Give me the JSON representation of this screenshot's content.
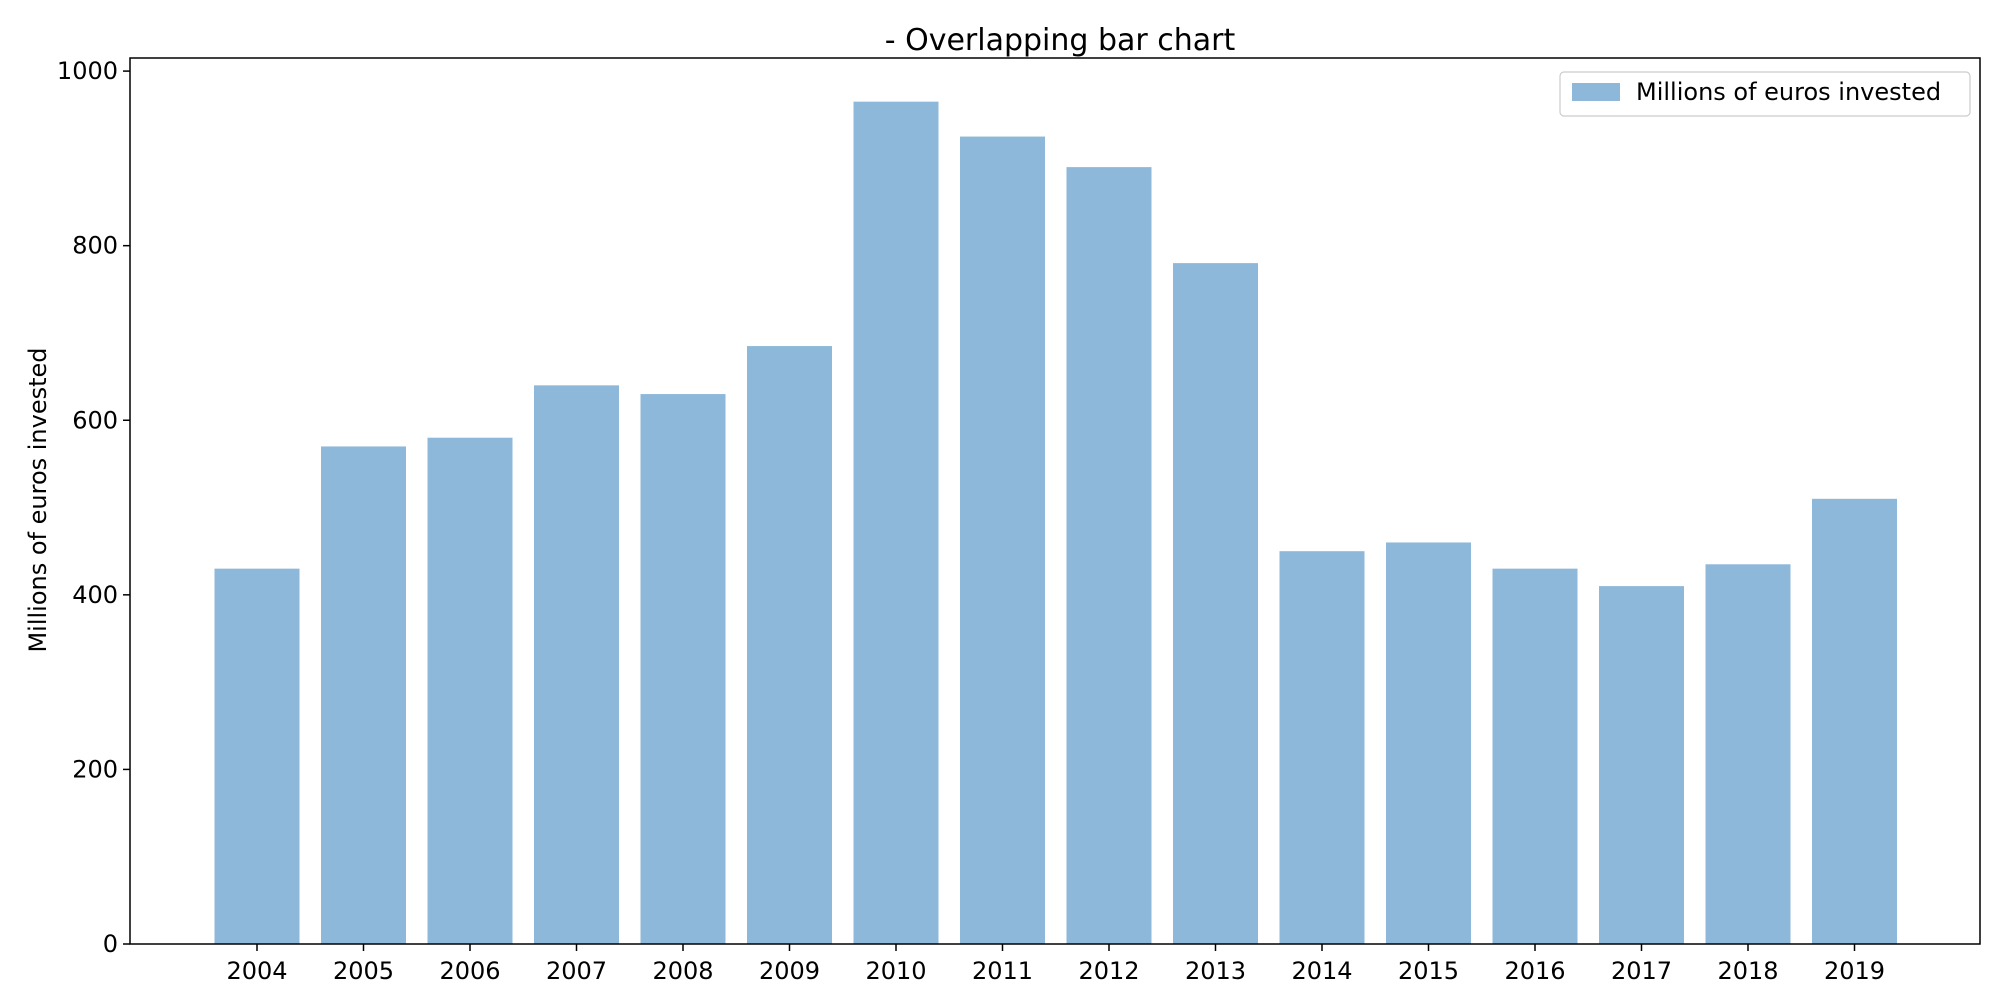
{
  "chart_data": {
    "type": "bar",
    "title": "- Overlapping bar chart",
    "xlabel": "",
    "ylabel": "Millions of euros invested",
    "categories": [
      "2004",
      "2005",
      "2006",
      "2007",
      "2008",
      "2009",
      "2010",
      "2011",
      "2012",
      "2013",
      "2014",
      "2015",
      "2016",
      "2017",
      "2018",
      "2019"
    ],
    "series": [
      {
        "name": "Millions of euros invested",
        "color": "#8db8d9",
        "values": [
          430,
          570,
          580,
          640,
          630,
          685,
          965,
          925,
          890,
          780,
          450,
          460,
          430,
          410,
          435,
          510
        ]
      }
    ],
    "ylim": [
      0,
      1015
    ],
    "yticks": [
      0,
      200,
      400,
      600,
      800,
      1000
    ],
    "grid": false,
    "legend_position": "top-right"
  }
}
